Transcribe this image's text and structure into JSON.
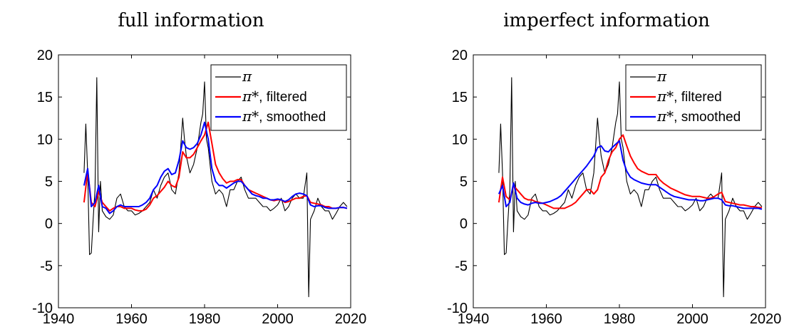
{
  "chart_data": [
    {
      "type": "line",
      "title": "full information",
      "xlim": [
        1940,
        2020
      ],
      "ylim": [
        -10,
        20
      ],
      "xticks": [
        "1940",
        "1960",
        "1980",
        "2000",
        "2020"
      ],
      "yticks": [
        "-10",
        "-5",
        "0",
        "5",
        "10",
        "15",
        "20"
      ],
      "grid": false,
      "legend_position": "top-right",
      "series": [
        {
          "name": "π",
          "legend_symbol": "π",
          "legend_suffix": "",
          "color": "#000000",
          "x": [
            1947,
            1947.5,
            1948,
            1948.5,
            1949,
            1949.5,
            1950,
            1950.5,
            1951,
            1951.5,
            1952,
            1953,
            1954,
            1955,
            1956,
            1957,
            1958,
            1959,
            1960,
            1961,
            1962,
            1963,
            1964,
            1965,
            1966,
            1967,
            1968,
            1969,
            1970,
            1971,
            1972,
            1973,
            1974,
            1974.5,
            1975,
            1976,
            1977,
            1978,
            1979,
            1979.5,
            1980,
            1980.5,
            1981,
            1982,
            1983,
            1984,
            1985,
            1986,
            1987,
            1988,
            1989,
            1990,
            1991,
            1992,
            1993,
            1994,
            1995,
            1996,
            1997,
            1998,
            1999,
            2000,
            2001,
            2002,
            2003,
            2004,
            2005,
            2006,
            2007,
            2008,
            2008.5,
            2009,
            2010,
            2011,
            2012,
            2013,
            2014,
            2015,
            2016,
            2017,
            2018,
            2019
          ],
          "y": [
            6,
            11.8,
            6,
            -3.7,
            -3.5,
            0.5,
            4,
            17.3,
            -1,
            5,
            1.5,
            0.8,
            0.5,
            1,
            3,
            3.5,
            2,
            1.5,
            1.5,
            1,
            1.2,
            1.5,
            2,
            2.5,
            4,
            3,
            4.5,
            5.5,
            6,
            4,
            3.5,
            6,
            12.5,
            10,
            8,
            6,
            7,
            9,
            12,
            13,
            16.8,
            10,
            9,
            5,
            3.5,
            4,
            3.5,
            2,
            4,
            4,
            5,
            5.5,
            4,
            3,
            3,
            3,
            2.5,
            2,
            2,
            1.5,
            1.8,
            2.2,
            3,
            1.5,
            2,
            3,
            3.5,
            3,
            3,
            6,
            -8.7,
            0.5,
            1.5,
            3,
            2,
            1.5,
            1.5,
            0.5,
            1.2,
            2,
            2.5,
            2
          ]
        },
        {
          "name": "π*, filtered",
          "legend_symbol": "π*",
          "legend_suffix": ", filtered",
          "color": "#ff0000",
          "x": [
            1947,
            1948,
            1949,
            1950,
            1951,
            1952,
            1953,
            1954,
            1955,
            1956,
            1957,
            1958,
            1959,
            1960,
            1961,
            1962,
            1963,
            1964,
            1965,
            1966,
            1967,
            1968,
            1969,
            1970,
            1971,
            1972,
            1973,
            1974,
            1975,
            1976,
            1977,
            1978,
            1979,
            1980,
            1981,
            1982,
            1983,
            1984,
            1985,
            1986,
            1987,
            1988,
            1989,
            1990,
            1991,
            1992,
            1993,
            1994,
            1995,
            1996,
            1997,
            1998,
            1999,
            2000,
            2001,
            2002,
            2003,
            2004,
            2005,
            2006,
            2007,
            2008,
            2009,
            2010,
            2011,
            2012,
            2013,
            2014,
            2015,
            2016,
            2017,
            2018,
            2019
          ],
          "y": [
            2.5,
            6.2,
            2.5,
            2,
            3.8,
            2.5,
            2,
            1.5,
            1.8,
            2,
            2,
            1.8,
            1.8,
            1.8,
            1.6,
            1.5,
            1.5,
            1.7,
            2.2,
            3,
            3.3,
            3.8,
            4.3,
            5,
            4.5,
            4.3,
            5.5,
            8.5,
            7.8,
            7.8,
            8.2,
            9,
            9.8,
            10.5,
            12,
            9.5,
            7,
            6,
            5.3,
            4.8,
            5,
            5,
            5.2,
            5.2,
            4.5,
            4,
            3.8,
            3.6,
            3.4,
            3.2,
            3,
            2.8,
            2.7,
            2.8,
            2.8,
            2.5,
            2.6,
            2.8,
            3,
            3,
            3.2,
            3.3,
            2.5,
            2.4,
            2.3,
            2.2,
            2,
            2,
            1.8,
            1.8,
            1.9,
            1.9,
            1.8
          ]
        },
        {
          "name": "π*, smoothed",
          "legend_symbol": "π*",
          "legend_suffix": ", smoothed",
          "color": "#0000ff",
          "x": [
            1947,
            1948,
            1949,
            1950,
            1951,
            1952,
            1953,
            1954,
            1955,
            1956,
            1957,
            1958,
            1959,
            1960,
            1961,
            1962,
            1963,
            1964,
            1965,
            1966,
            1967,
            1968,
            1969,
            1970,
            1971,
            1972,
            1973,
            1974,
            1975,
            1976,
            1977,
            1978,
            1979,
            1980,
            1981,
            1982,
            1983,
            1984,
            1985,
            1986,
            1987,
            1988,
            1989,
            1990,
            1991,
            1992,
            1993,
            1994,
            1995,
            1996,
            1997,
            1998,
            1999,
            2000,
            2001,
            2002,
            2003,
            2004,
            2005,
            2006,
            2007,
            2008,
            2009,
            2010,
            2011,
            2012,
            2013,
            2014,
            2015,
            2016,
            2017,
            2018,
            2019
          ],
          "y": [
            4.5,
            6.5,
            2,
            2.5,
            4.5,
            2,
            1.8,
            1.2,
            1.5,
            2,
            2.2,
            2,
            2,
            2,
            2,
            2,
            2.2,
            2.5,
            3,
            4,
            4.5,
            5.5,
            6.2,
            6.5,
            5.8,
            6,
            7.5,
            9.8,
            9,
            8.8,
            9,
            9.5,
            10.5,
            12,
            10,
            6.5,
            5,
            4.5,
            4.5,
            4.2,
            4.5,
            4.8,
            5,
            5,
            4.5,
            4,
            3.5,
            3.3,
            3.2,
            3,
            3,
            2.8,
            2.8,
            2.9,
            2.8,
            2.6,
            2.8,
            3.2,
            3.5,
            3.6,
            3.5,
            3.3,
            2.2,
            2,
            2.1,
            2.1,
            1.9,
            1.8,
            1.8,
            1.8,
            1.9,
            1.9,
            1.8
          ]
        }
      ]
    },
    {
      "type": "line",
      "title": "imperfect information",
      "xlim": [
        1940,
        2020
      ],
      "ylim": [
        -10,
        20
      ],
      "xticks": [
        "1940",
        "1960",
        "1980",
        "2000",
        "2020"
      ],
      "yticks": [
        "-10",
        "-5",
        "0",
        "5",
        "10",
        "15",
        "20"
      ],
      "grid": false,
      "legend_position": "top-right",
      "series": [
        {
          "name": "π",
          "legend_symbol": "π",
          "legend_suffix": "",
          "color": "#000000",
          "x": [
            1947,
            1947.5,
            1948,
            1948.5,
            1949,
            1949.5,
            1950,
            1950.5,
            1951,
            1951.5,
            1952,
            1953,
            1954,
            1955,
            1956,
            1957,
            1958,
            1959,
            1960,
            1961,
            1962,
            1963,
            1964,
            1965,
            1966,
            1967,
            1968,
            1969,
            1970,
            1971,
            1972,
            1973,
            1974,
            1974.5,
            1975,
            1976,
            1977,
            1978,
            1979,
            1979.5,
            1980,
            1980.5,
            1981,
            1982,
            1983,
            1984,
            1985,
            1986,
            1987,
            1988,
            1989,
            1990,
            1991,
            1992,
            1993,
            1994,
            1995,
            1996,
            1997,
            1998,
            1999,
            2000,
            2001,
            2002,
            2003,
            2004,
            2005,
            2006,
            2007,
            2008,
            2008.5,
            2009,
            2010,
            2011,
            2012,
            2013,
            2014,
            2015,
            2016,
            2017,
            2018,
            2019
          ],
          "y": [
            6,
            11.8,
            6,
            -3.7,
            -3.5,
            0.5,
            4,
            17.3,
            -1,
            5,
            1.5,
            0.8,
            0.5,
            1,
            3,
            3.5,
            2,
            1.5,
            1.5,
            1,
            1.2,
            1.5,
            2,
            2.5,
            4,
            3,
            4.5,
            5.5,
            6,
            4,
            3.5,
            6,
            12.5,
            10,
            8,
            6,
            7,
            9,
            12,
            13,
            16.8,
            10,
            9,
            5,
            3.5,
            4,
            3.5,
            2,
            4,
            4,
            5,
            5.5,
            4,
            3,
            3,
            3,
            2.5,
            2,
            2,
            1.5,
            1.8,
            2.2,
            3,
            1.5,
            2,
            3,
            3.5,
            3,
            3,
            6,
            -8.7,
            0.5,
            1.5,
            3,
            2,
            1.5,
            1.5,
            0.5,
            1.2,
            2,
            2.5,
            2
          ]
        },
        {
          "name": "π*, filtered",
          "legend_symbol": "π*",
          "legend_suffix": ", filtered",
          "color": "#ff0000",
          "x": [
            1947,
            1948,
            1949,
            1950,
            1951,
            1952,
            1953,
            1954,
            1955,
            1956,
            1957,
            1958,
            1959,
            1960,
            1961,
            1962,
            1963,
            1964,
            1965,
            1966,
            1967,
            1968,
            1969,
            1970,
            1971,
            1972,
            1973,
            1974,
            1975,
            1976,
            1977,
            1978,
            1979,
            1980,
            1981,
            1982,
            1983,
            1984,
            1985,
            1986,
            1987,
            1988,
            1989,
            1990,
            1991,
            1992,
            1993,
            1994,
            1995,
            1996,
            1997,
            1998,
            1999,
            2000,
            2001,
            2002,
            2003,
            2004,
            2005,
            2006,
            2007,
            2008,
            2009,
            2010,
            2011,
            2012,
            2013,
            2014,
            2015,
            2016,
            2017,
            2018,
            2019
          ],
          "y": [
            2.5,
            5.5,
            3.2,
            2.8,
            4.5,
            4,
            3.5,
            3,
            2.8,
            2.8,
            2.6,
            2.5,
            2.4,
            2.2,
            2,
            1.8,
            1.8,
            1.8,
            1.8,
            2,
            2.2,
            2.5,
            3,
            3.5,
            4,
            4,
            3.5,
            4,
            5.5,
            6,
            7.5,
            8.5,
            9,
            10,
            10.5,
            9.2,
            8,
            7.2,
            6.5,
            6.2,
            6,
            5.8,
            5.8,
            5.8,
            5.2,
            4.8,
            4.5,
            4.2,
            4,
            3.8,
            3.6,
            3.4,
            3.3,
            3.2,
            3.2,
            3.2,
            3.1,
            3,
            3,
            3.2,
            3.5,
            3.7,
            2.6,
            2.5,
            2.4,
            2.3,
            2.2,
            2.2,
            2.1,
            2,
            2,
            1.9,
            1.9
          ]
        },
        {
          "name": "π*, smoothed",
          "legend_symbol": "π*",
          "legend_suffix": ", smoothed",
          "color": "#0000ff",
          "x": [
            1947,
            1948,
            1949,
            1950,
            1951,
            1952,
            1953,
            1954,
            1955,
            1956,
            1957,
            1958,
            1959,
            1960,
            1961,
            1962,
            1963,
            1964,
            1965,
            1966,
            1967,
            1968,
            1969,
            1970,
            1971,
            1972,
            1973,
            1974,
            1975,
            1976,
            1977,
            1978,
            1979,
            1980,
            1981,
            1982,
            1983,
            1984,
            1985,
            1986,
            1987,
            1988,
            1989,
            1990,
            1991,
            1992,
            1993,
            1994,
            1995,
            1996,
            1997,
            1998,
            1999,
            2000,
            2001,
            2002,
            2003,
            2004,
            2005,
            2006,
            2007,
            2008,
            2009,
            2010,
            2011,
            2012,
            2013,
            2014,
            2015,
            2016,
            2017,
            2018,
            2019
          ],
          "y": [
            3.5,
            4.5,
            2,
            2.5,
            4.8,
            3,
            2.5,
            2.3,
            2.2,
            2.4,
            2.5,
            2.4,
            2.4,
            2.5,
            2.6,
            2.8,
            3,
            3.3,
            3.8,
            4.3,
            4.8,
            5.3,
            5.8,
            6.3,
            6.8,
            7.4,
            8,
            9,
            9.2,
            8.6,
            8.5,
            9,
            9.4,
            9.8,
            7.5,
            6.2,
            5.5,
            5.2,
            5,
            4.8,
            4.7,
            4.6,
            4.6,
            4.6,
            4.3,
            4,
            3.7,
            3.4,
            3.2,
            3.1,
            3,
            2.9,
            2.8,
            2.8,
            2.8,
            2.7,
            2.7,
            2.8,
            2.9,
            3,
            3,
            2.8,
            2.2,
            2.1,
            2.1,
            2,
            1.9,
            1.8,
            1.8,
            1.8,
            1.8,
            1.8,
            1.7
          ]
        }
      ]
    }
  ]
}
